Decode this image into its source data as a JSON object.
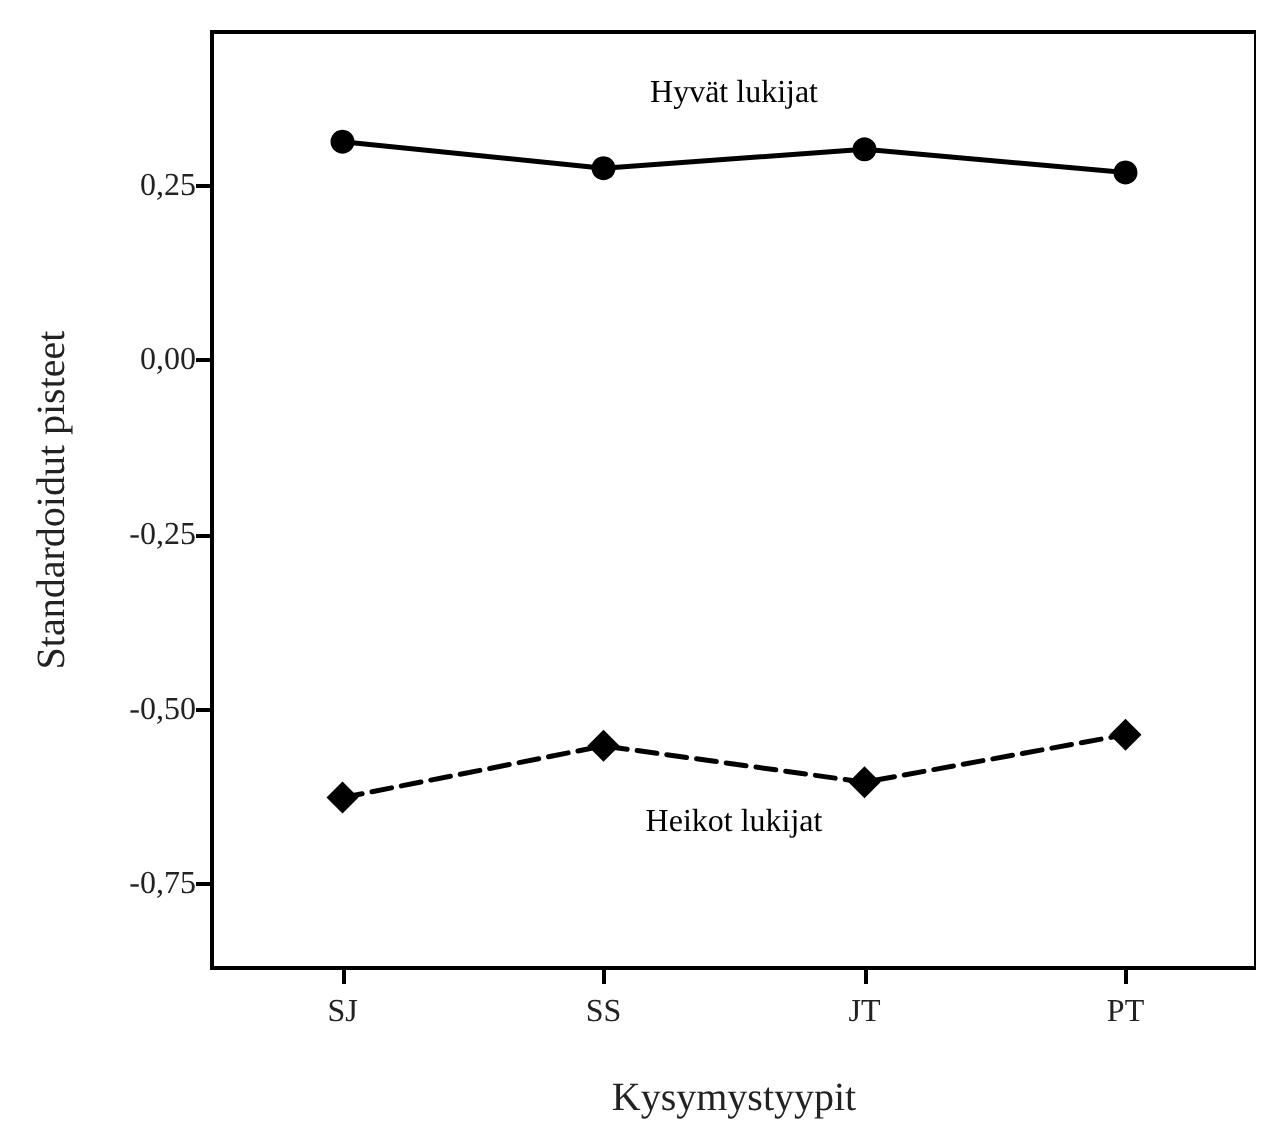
{
  "chart_data": {
    "type": "line",
    "xlabel": "Kysymystyypit",
    "ylabel": "Standardoidut pisteet",
    "categories": [
      "SJ",
      "SS",
      "JT",
      "PT"
    ],
    "series": [
      {
        "name": "Hyvät lukijat",
        "color": "#000000",
        "values": [
          0.313,
          0.275,
          0.302,
          0.269
        ],
        "marker": "circle",
        "line_style": "solid"
      },
      {
        "name": "Heikot lukijat",
        "color": "#000000",
        "values": [
          -0.626,
          -0.552,
          -0.604,
          -0.536
        ],
        "marker": "diamond",
        "line_style": "dashed"
      }
    ],
    "ylim": [
      -0.87,
      0.47
    ],
    "yticks": [
      {
        "value": -0.75,
        "label": "-0,75"
      },
      {
        "value": -0.5,
        "label": "-0,50"
      },
      {
        "value": -0.25,
        "label": "-0,25"
      },
      {
        "value": 0,
        "label": "0,00"
      },
      {
        "value": 0.25,
        "label": "0,25"
      }
    ],
    "grid": false,
    "legend": false
  }
}
